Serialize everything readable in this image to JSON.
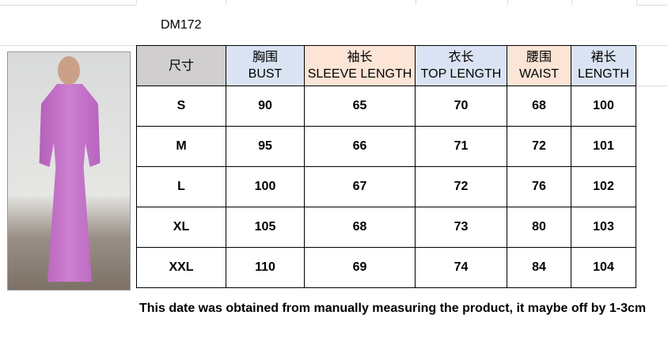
{
  "title": "DM172",
  "header": [
    {
      "cn": "尺寸",
      "en": ""
    },
    {
      "cn": "胸围",
      "en": "BUST"
    },
    {
      "cn": "袖长",
      "en": "SLEEVE LENGTH"
    },
    {
      "cn": "衣长",
      "en": "TOP LENGTH"
    },
    {
      "cn": "腰围",
      "en": "WAIST"
    },
    {
      "cn": "裙长",
      "en": "LENGTH"
    }
  ],
  "header_colors": [
    "#d0cece",
    "#dae3f3",
    "#fce4d6",
    "#dae3f3",
    "#fce4d6",
    "#dae3f3"
  ],
  "rows": [
    [
      "S",
      "90",
      "65",
      "70",
      "68",
      "100"
    ],
    [
      "M",
      "95",
      "66",
      "71",
      "72",
      "101"
    ],
    [
      "L",
      "100",
      "67",
      "72",
      "76",
      "102"
    ],
    [
      "XL",
      "105",
      "68",
      "73",
      "80",
      "103"
    ],
    [
      "XXL",
      "110",
      "69",
      "74",
      "84",
      "104"
    ]
  ],
  "note": "This date was obtained from manually measuring the product, it maybe off by 1-3cm"
}
